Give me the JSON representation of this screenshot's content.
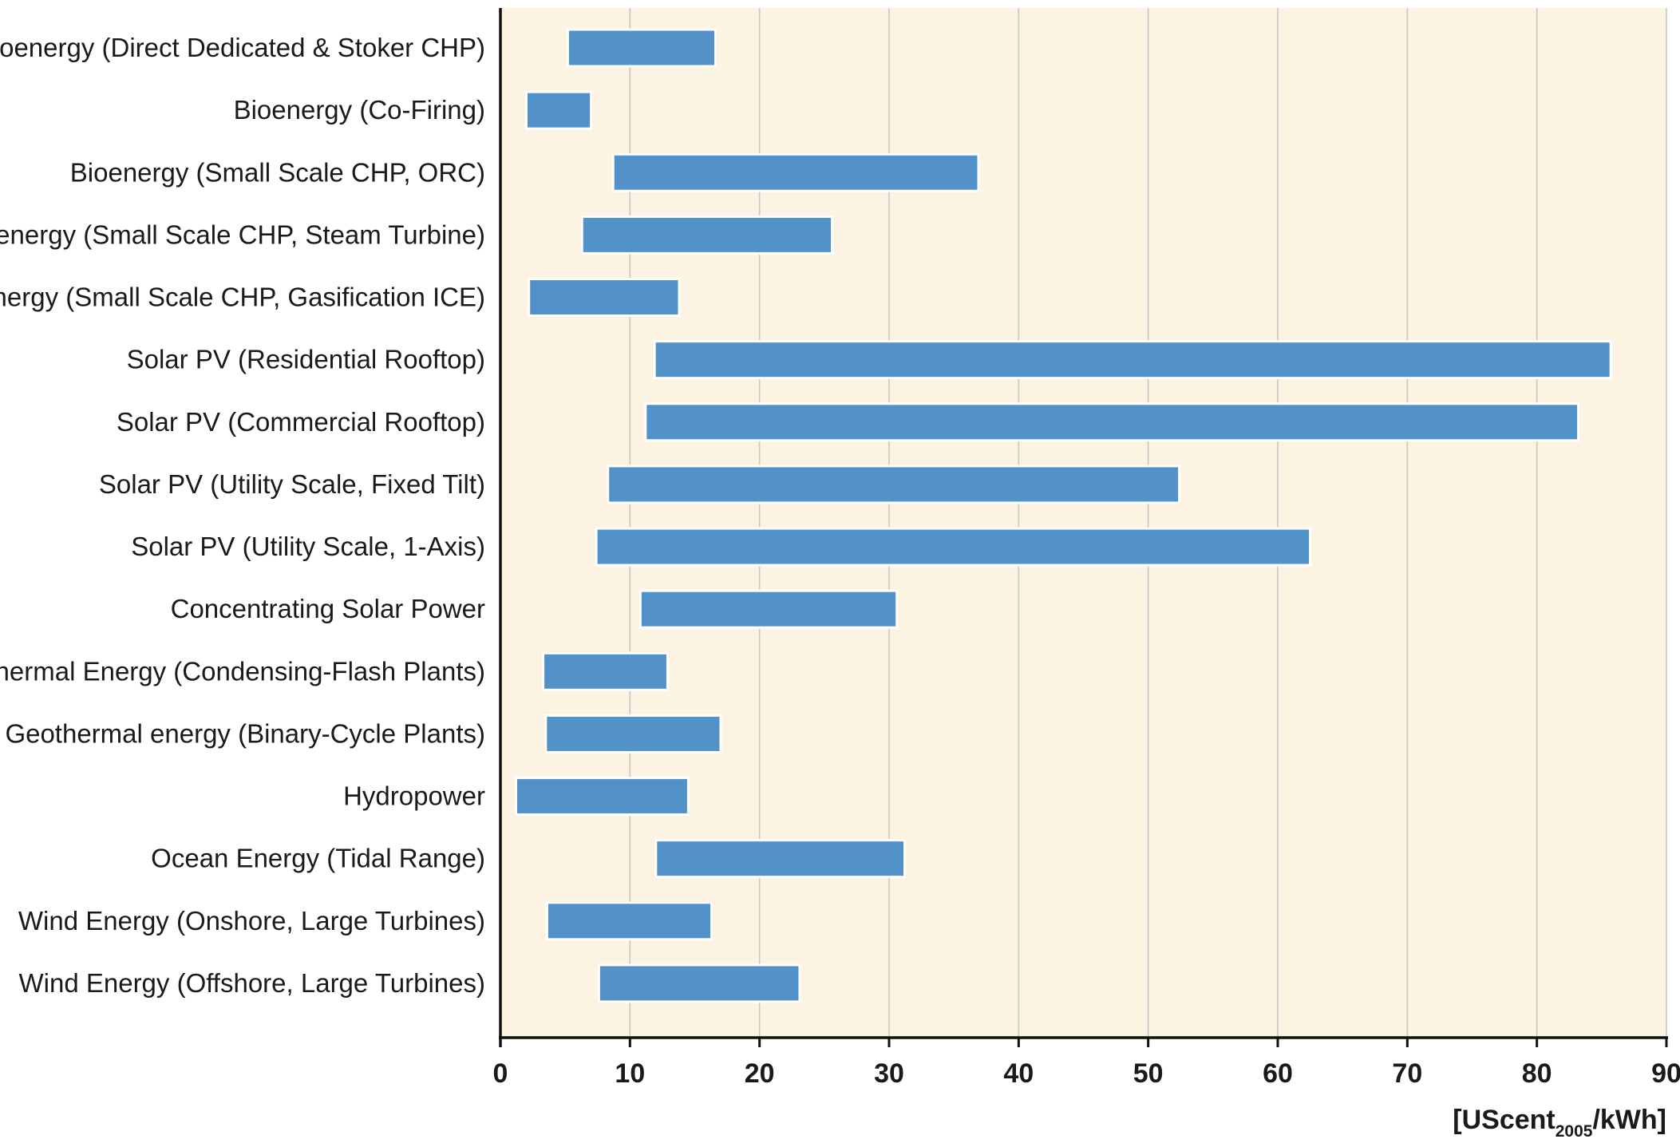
{
  "chart_data": {
    "type": "bar",
    "orientation": "horizontal-range",
    "categories": [
      "Bioenergy (Direct Dedicated & Stoker CHP)",
      "Bioenergy (Co-Firing)",
      "Bioenergy (Small Scale CHP, ORC)",
      "Bioenergy (Small Scale CHP, Steam Turbine)",
      "Bioenergy (Small Scale CHP, Gasification ICE)",
      "Solar PV (Residential Rooftop)",
      "Solar PV (Commercial Rooftop)",
      "Solar PV (Utility Scale, Fixed Tilt)",
      "Solar PV (Utility Scale, 1-Axis)",
      "Concentrating Solar Power",
      "Geothermal Energy (Condensing-Flash Plants)",
      "Geothermal energy (Binary-Cycle Plants)",
      "Hydropower",
      "Ocean Energy (Tidal Range)",
      "Wind Energy (Onshore, Large Turbines)",
      "Wind Energy (Offshore, Large Turbines)"
    ],
    "ranges": [
      [
        5.2,
        16.6
      ],
      [
        2.0,
        7.0
      ],
      [
        8.7,
        36.9
      ],
      [
        6.3,
        25.6
      ],
      [
        2.2,
        13.8
      ],
      [
        11.9,
        85.7
      ],
      [
        11.2,
        83.2
      ],
      [
        8.3,
        52.4
      ],
      [
        7.4,
        62.5
      ],
      [
        10.8,
        30.6
      ],
      [
        3.3,
        12.9
      ],
      [
        3.5,
        17.0
      ],
      [
        1.2,
        14.5
      ],
      [
        12.0,
        31.2
      ],
      [
        3.6,
        16.3
      ],
      [
        7.6,
        23.1
      ]
    ],
    "xlim": [
      0,
      90
    ],
    "xticks": [
      0,
      10,
      20,
      30,
      40,
      50,
      60,
      70,
      80,
      90
    ],
    "xlabel_main": "[UScent",
    "xlabel_sub": "2005",
    "xlabel_end": "/kWh]",
    "grid": "vertical",
    "colors": {
      "bar_fill": "#5391c9",
      "bar_stroke": "#ffffff",
      "plot_background": "#fdf3e3",
      "grid": "#c7c7c7",
      "axis": "#111111"
    }
  }
}
